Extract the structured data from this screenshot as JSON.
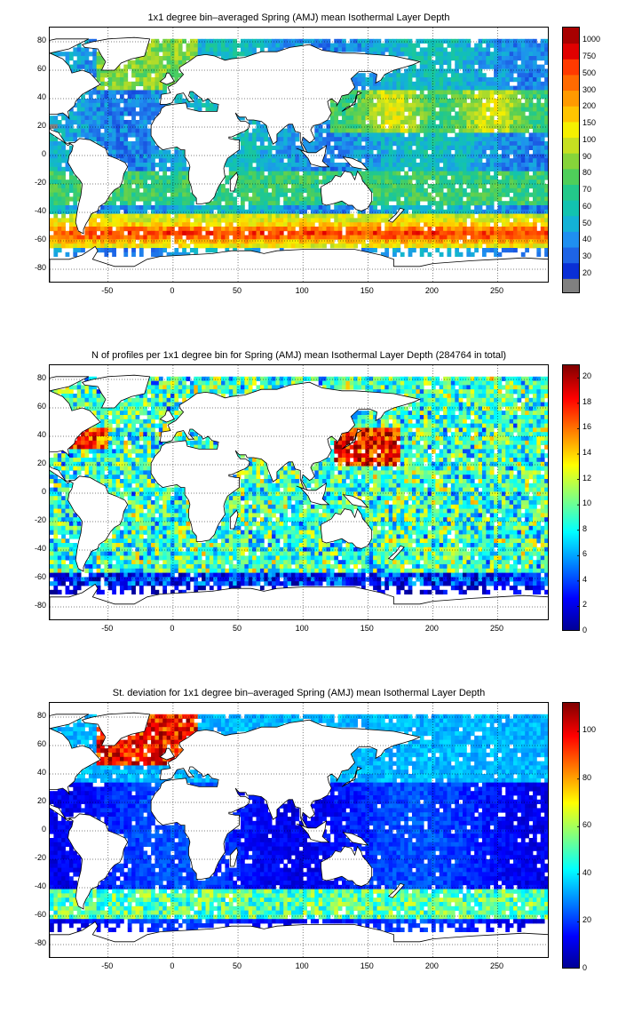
{
  "panels": [
    {
      "title": "1x1 degree bin–averaged Spring (AMJ) mean Isothermal Layer Depth",
      "colorbar_kind": "discrete",
      "colorbar_colors": [
        "#808080",
        "#0a2fd6",
        "#1e64e6",
        "#1f8ff0",
        "#13b2d6",
        "#12c3b0",
        "#23c98a",
        "#4fcf5a",
        "#86d43a",
        "#c6e021",
        "#f5f000",
        "#ffc400",
        "#ff9a00",
        "#ff6a00",
        "#ff3a00",
        "#e00000",
        "#a80000"
      ],
      "colorbar_labels": [
        "20",
        "30",
        "40",
        "50",
        "60",
        "70",
        "80",
        "90",
        "100",
        "150",
        "200",
        "300",
        "500",
        "750",
        "1000"
      ],
      "colorbar_label_positions": [
        0.05,
        0.112,
        0.174,
        0.236,
        0.298,
        0.36,
        0.422,
        0.484,
        0.546,
        0.608,
        0.67,
        0.732,
        0.794,
        0.856,
        0.918
      ],
      "colorbar_labels_top_to_bottom": true
    },
    {
      "title": "N of profiles per 1x1 degree bin for Spring (AMJ) mean Isothermal Layer Depth  (284764 in total)",
      "colorbar_kind": "continuous",
      "colorbar_colors": [
        "#00008f",
        "#0000ff",
        "#0080ff",
        "#00ffff",
        "#80ff80",
        "#ffff00",
        "#ff8000",
        "#ff0000",
        "#800000"
      ],
      "colorbar_labels": [
        "0",
        "2",
        "4",
        "6",
        "8",
        "10",
        "12",
        "14",
        "16",
        "18",
        "20"
      ],
      "colorbar_min": 0,
      "colorbar_max": 21
    },
    {
      "title": "St. deviation for 1x1 degree bin–averaged Spring (AMJ) mean Isothermal Layer Depth",
      "colorbar_kind": "continuous",
      "colorbar_colors": [
        "#00008f",
        "#0000ff",
        "#0080ff",
        "#00ffff",
        "#80ff80",
        "#ffff00",
        "#ff8000",
        "#ff0000",
        "#800000"
      ],
      "colorbar_labels": [
        "0",
        "20",
        "40",
        "60",
        "80",
        "100"
      ],
      "colorbar_min": 0,
      "colorbar_max": 112
    }
  ],
  "axes": {
    "x_ticks": [
      "-50",
      "0",
      "50",
      "100",
      "150",
      "200",
      "250"
    ],
    "x_values": [
      -50,
      0,
      50,
      100,
      150,
      200,
      250
    ],
    "x_range": [
      -95,
      290
    ],
    "y_ticks": [
      "80",
      "60",
      "40",
      "20",
      "0",
      "-20",
      "-40",
      "-60",
      "-80"
    ],
    "y_values": [
      80,
      60,
      40,
      20,
      0,
      -20,
      -40,
      -60,
      -80
    ],
    "y_range": [
      -90,
      90
    ],
    "grid": true
  }
}
